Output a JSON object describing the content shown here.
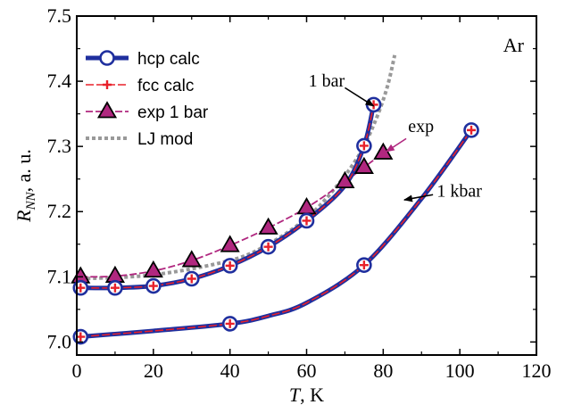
{
  "chart_data": {
    "type": "line",
    "title": "",
    "panel_label": "Ar",
    "xlabel": {
      "var": "T",
      "unit": ", K"
    },
    "ylabel": {
      "var": "R",
      "sub": "NN",
      "unit": ", a. u."
    },
    "xlim": [
      0,
      120
    ],
    "ylim": [
      6.98,
      7.5
    ],
    "x_ticks": [
      0,
      20,
      40,
      60,
      80,
      100,
      120
    ],
    "y_ticks": [
      7.0,
      7.1,
      7.2,
      7.3,
      7.4,
      7.5
    ],
    "legend_position": "top-left",
    "series": [
      {
        "name": "hcp calc",
        "style": "hcp",
        "color": "#1f2f9e",
        "curves": [
          [
            [
              1,
              7.083
            ],
            [
              10,
              7.083
            ],
            [
              20,
              7.086
            ],
            [
              30,
              7.097
            ],
            [
              40,
              7.117
            ],
            [
              50,
              7.146
            ],
            [
              60,
              7.186
            ],
            [
              70,
              7.24
            ],
            [
              75,
              7.301
            ],
            [
              77.5,
              7.364
            ]
          ],
          [
            [
              1,
              7.008
            ],
            [
              20,
              7.017
            ],
            [
              40,
              7.028
            ],
            [
              50,
              7.04
            ],
            [
              60,
              7.06
            ],
            [
              75,
              7.118
            ],
            [
              90,
              7.22
            ],
            [
              103,
              7.325
            ]
          ]
        ],
        "markers": [
          [
            1,
            7.083
          ],
          [
            10,
            7.083
          ],
          [
            20,
            7.086
          ],
          [
            30,
            7.097
          ],
          [
            40,
            7.117
          ],
          [
            50,
            7.146
          ],
          [
            60,
            7.186
          ],
          [
            75,
            7.301
          ],
          [
            77.5,
            7.364
          ],
          [
            1,
            7.008
          ],
          [
            40,
            7.028
          ],
          [
            75,
            7.118
          ],
          [
            103,
            7.325
          ]
        ]
      },
      {
        "name": "fcc calc",
        "style": "fcc",
        "color": "#e8202a",
        "curves": [
          [
            [
              1,
              7.083
            ],
            [
              10,
              7.083
            ],
            [
              20,
              7.086
            ],
            [
              30,
              7.097
            ],
            [
              40,
              7.117
            ],
            [
              50,
              7.146
            ],
            [
              60,
              7.186
            ],
            [
              70,
              7.24
            ],
            [
              75,
              7.301
            ],
            [
              77.5,
              7.364
            ]
          ],
          [
            [
              1,
              7.008
            ],
            [
              20,
              7.017
            ],
            [
              40,
              7.028
            ],
            [
              50,
              7.04
            ],
            [
              60,
              7.06
            ],
            [
              75,
              7.118
            ],
            [
              90,
              7.22
            ],
            [
              103,
              7.325
            ]
          ]
        ],
        "markers": [
          [
            1,
            7.083
          ],
          [
            10,
            7.083
          ],
          [
            20,
            7.086
          ],
          [
            30,
            7.097
          ],
          [
            40,
            7.117
          ],
          [
            50,
            7.146
          ],
          [
            60,
            7.186
          ],
          [
            75,
            7.301
          ],
          [
            77.5,
            7.364
          ],
          [
            1,
            7.008
          ],
          [
            40,
            7.028
          ],
          [
            75,
            7.118
          ],
          [
            103,
            7.325
          ]
        ]
      },
      {
        "name": "exp 1 bar",
        "style": "exp",
        "color": "#b0277f",
        "curves": [
          [
            [
              1,
              7.1
            ],
            [
              10,
              7.101
            ],
            [
              20,
              7.109
            ],
            [
              30,
              7.125
            ],
            [
              40,
              7.148
            ],
            [
              50,
              7.175
            ],
            [
              60,
              7.206
            ],
            [
              70,
              7.246
            ],
            [
              75,
              7.268
            ],
            [
              80,
              7.29
            ]
          ]
        ],
        "markers": [
          [
            1,
            7.1
          ],
          [
            10,
            7.101
          ],
          [
            20,
            7.109
          ],
          [
            30,
            7.125
          ],
          [
            40,
            7.148
          ],
          [
            50,
            7.175
          ],
          [
            60,
            7.206
          ],
          [
            70,
            7.246
          ],
          [
            75,
            7.268
          ],
          [
            80,
            7.29
          ]
        ]
      },
      {
        "name": "LJ mod",
        "style": "lj",
        "color": "#999999",
        "curves": [
          [
            [
              1,
              7.097
            ],
            [
              20,
              7.103
            ],
            [
              40,
              7.125
            ],
            [
              50,
              7.15
            ],
            [
              60,
              7.19
            ],
            [
              68,
              7.24
            ],
            [
              74,
              7.29
            ],
            [
              78,
              7.34
            ],
            [
              81,
              7.39
            ],
            [
              83,
              7.44
            ]
          ]
        ],
        "markers": []
      }
    ],
    "annotations": [
      {
        "text": "1 bar",
        "label_at": [
          60.5,
          7.392
        ],
        "arrow_from": [
          70,
          7.39
        ],
        "arrow_to": [
          77.5,
          7.362
        ],
        "color": "#000000"
      },
      {
        "text": "exp",
        "label_at": [
          86.5,
          7.322
        ],
        "arrow_from": [
          86,
          7.312
        ],
        "arrow_to": [
          80.8,
          7.292
        ],
        "color": "#b0277f"
      },
      {
        "text": "1 kbar",
        "label_at": [
          94,
          7.223
        ],
        "arrow_from": [
          93,
          7.226
        ],
        "arrow_to": [
          85.5,
          7.218
        ],
        "color": "#000000"
      }
    ]
  }
}
